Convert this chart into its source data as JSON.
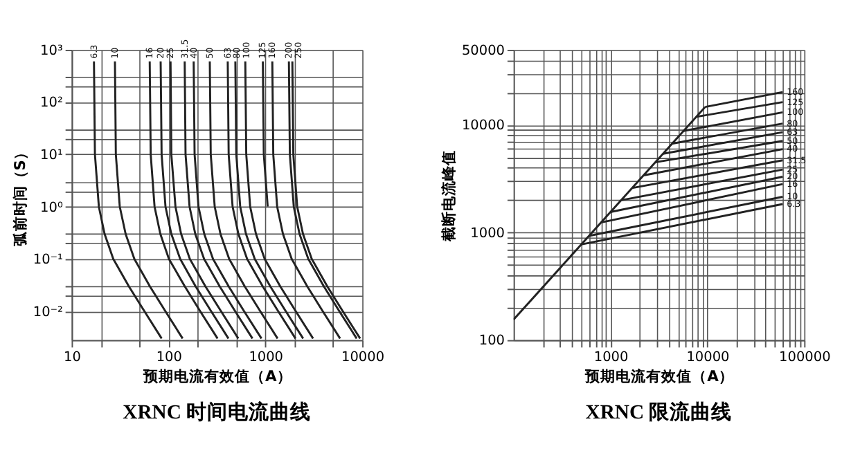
{
  "chart_data": [
    {
      "type": "line",
      "title": "XRNC 时间电流曲线",
      "xlabel": "预期电流有效值（A）",
      "ylabel": "弧前时间（S）",
      "log": "xy",
      "grid": true,
      "legend": false,
      "xlim": [
        10,
        10000
      ],
      "ylim": [
        0.0028,
        1000
      ],
      "xticks": [
        10,
        {
          "value": 20,
          "label": null
        },
        {
          "value": 50,
          "label": null
        },
        100,
        {
          "value": 200,
          "label": null
        },
        {
          "value": 500,
          "label": null
        },
        1000,
        {
          "value": 2000,
          "label": null
        },
        {
          "value": 5000,
          "label": null
        },
        10000
      ],
      "yticks": [
        {
          "value": 0.01,
          "label": "10⁻²"
        },
        {
          "value": 0.02,
          "label": null
        },
        {
          "value": 0.03,
          "label": null
        },
        {
          "value": 0.1,
          "label": "10⁻¹"
        },
        {
          "value": 0.2,
          "label": null
        },
        {
          "value": 0.3,
          "label": null
        },
        {
          "value": 1,
          "label": "10⁰"
        },
        {
          "value": 2,
          "label": null
        },
        {
          "value": 3,
          "label": null
        },
        {
          "value": 10,
          "label": "10¹"
        },
        {
          "value": 20,
          "label": null
        },
        {
          "value": 30,
          "label": null
        },
        {
          "value": 100,
          "label": "10²"
        },
        {
          "value": 200,
          "label": null
        },
        {
          "value": 300,
          "label": null
        },
        {
          "value": 1000,
          "label": "10³"
        }
      ],
      "series": [
        {
          "name": "6.3",
          "color": "#222222",
          "x": [
            17,
            17.4,
            19.1,
            21.9,
            26.9,
            38.9,
            56.3,
            85
          ],
          "values": [
            600,
            10,
            1,
            0.3,
            0.1,
            0.03,
            0.01,
            0.003
          ]
        },
        {
          "name": "10",
          "color": "#222222",
          "x": [
            28,
            28.6,
            31.4,
            36.1,
            44.4,
            64.1,
            92.7,
            140
          ],
          "values": [
            600,
            10,
            1,
            0.3,
            0.1,
            0.03,
            0.01,
            0.003
          ]
        },
        {
          "name": "16",
          "color": "#222222",
          "x": [
            64,
            65.5,
            71.8,
            82.4,
            101,
            147,
            212,
            321
          ],
          "values": [
            600,
            10,
            1,
            0.3,
            0.1,
            0.03,
            0.01,
            0.003
          ]
        },
        {
          "name": "20",
          "color": "#222222",
          "x": [
            83,
            84.9,
            93.1,
            107,
            132,
            190,
            275,
            416
          ],
          "values": [
            600,
            10,
            1,
            0.3,
            0.1,
            0.03,
            0.01,
            0.003
          ]
        },
        {
          "name": "25",
          "color": "#222222",
          "x": [
            105,
            107,
            118,
            135,
            166,
            240,
            348,
            526
          ],
          "values": [
            600,
            10,
            1,
            0.3,
            0.1,
            0.03,
            0.01,
            0.003
          ]
        },
        {
          "name": "31.5",
          "color": "#222222",
          "x": [
            147,
            150,
            165,
            189,
            233,
            337,
            487,
            736
          ],
          "values": [
            600,
            10,
            1,
            0.3,
            0.1,
            0.03,
            0.01,
            0.003
          ]
        },
        {
          "name": "40",
          "color": "#222222",
          "x": [
            182,
            186,
            204,
            234,
            288,
            417,
            602,
            912
          ],
          "values": [
            600,
            10,
            1,
            0.3,
            0.1,
            0.03,
            0.01,
            0.003
          ]
        },
        {
          "name": "50",
          "color": "#222222",
          "x": [
            267,
            273,
            300,
            344,
            423,
            611,
            884,
            1338
          ],
          "values": [
            600,
            10,
            1,
            0.3,
            0.1,
            0.03,
            0.01,
            0.003
          ]
        },
        {
          "name": "63",
          "color": "#222222",
          "x": [
            409,
            418,
            459,
            527,
            648,
            937,
            1354,
            2049
          ],
          "values": [
            600,
            10,
            1,
            0.3,
            0.1,
            0.03,
            0.01,
            0.003
          ]
        },
        {
          "name": "80",
          "color": "#222222",
          "x": [
            490,
            501,
            550,
            631,
            777,
            1122,
            1622,
            2455
          ],
          "values": [
            600,
            10,
            1,
            0.3,
            0.1,
            0.03,
            0.01,
            0.003
          ]
        },
        {
          "name": "100",
          "color": "#222222",
          "x": [
            621,
            635,
            697,
            800,
            984,
            1422,
            2056,
            3111
          ],
          "values": [
            600,
            10,
            1,
            0.3,
            0.1,
            0.03,
            0.01,
            0.003
          ]
        },
        {
          "name": "125",
          "color": "#222222",
          "x": [
            942,
            964,
            1057
          ],
          "values": [
            600,
            10,
            1
          ]
        },
        {
          "name": "160",
          "color": "#222222",
          "x": [
            1180,
            1207,
            1324,
            1520,
            1870,
            2702,
            3906,
            5912
          ],
          "values": [
            600,
            10,
            1,
            0.3,
            0.1,
            0.03,
            0.01,
            0.003
          ]
        },
        {
          "name": "200",
          "color": "#222222",
          "x": [
            1750,
            1790,
            1964,
            2254,
            2774,
            4008,
            5793,
            8768
          ],
          "values": [
            600,
            10,
            1,
            0.3,
            0.1,
            0.03,
            0.01,
            0.003
          ]
        },
        {
          "name": "250",
          "color": "#222222",
          "x": [
            1900,
            1944,
            2132,
            2447,
            3012,
            4351,
            6289,
            9519
          ],
          "values": [
            600,
            10,
            1,
            0.3,
            0.1,
            0.03,
            0.01,
            0.003
          ]
        }
      ]
    },
    {
      "type": "line",
      "title": "XRNC 限流曲线",
      "xlabel": "预期电流有效值（A）",
      "ylabel": "截断电流峰值",
      "log": "xy",
      "grid": true,
      "legend": false,
      "xlim": [
        100,
        100000
      ],
      "ylim": [
        100,
        50000
      ],
      "xticks": [
        {
          "value": 200,
          "label": null
        },
        {
          "value": 300,
          "label": null
        },
        {
          "value": 400,
          "label": null
        },
        {
          "value": 500,
          "label": null
        },
        {
          "value": 600,
          "label": null
        },
        {
          "value": 700,
          "label": null
        },
        {
          "value": 800,
          "label": null
        },
        {
          "value": 900,
          "label": null
        },
        1000,
        {
          "value": 2000,
          "label": null
        },
        {
          "value": 3000,
          "label": null
        },
        {
          "value": 4000,
          "label": null
        },
        {
          "value": 5000,
          "label": null
        },
        {
          "value": 6000,
          "label": null
        },
        {
          "value": 7000,
          "label": null
        },
        {
          "value": 8000,
          "label": null
        },
        {
          "value": 9000,
          "label": null
        },
        10000,
        {
          "value": 20000,
          "label": null
        },
        {
          "value": 30000,
          "label": null
        },
        {
          "value": 40000,
          "label": null
        },
        {
          "value": 50000,
          "label": null
        },
        {
          "value": 60000,
          "label": null
        },
        {
          "value": 70000,
          "label": null
        },
        {
          "value": 80000,
          "label": null
        },
        {
          "value": 90000,
          "label": null
        },
        100000
      ],
      "yticks": [
        100,
        {
          "value": 200,
          "label": null
        },
        {
          "value": 300,
          "label": null
        },
        {
          "value": 400,
          "label": null
        },
        {
          "value": 500,
          "label": null
        },
        {
          "value": 600,
          "label": null
        },
        {
          "value": 700,
          "label": null
        },
        {
          "value": 800,
          "label": null
        },
        {
          "value": 900,
          "label": null
        },
        1000,
        {
          "value": 2000,
          "label": null
        },
        {
          "value": 3000,
          "label": null
        },
        {
          "value": 4000,
          "label": null
        },
        {
          "value": 5000,
          "label": null
        },
        {
          "value": 6000,
          "label": null
        },
        {
          "value": 7000,
          "label": null
        },
        {
          "value": 8000,
          "label": null
        },
        {
          "value": 9000,
          "label": null
        },
        10000,
        {
          "value": 20000,
          "label": null
        },
        {
          "value": 30000,
          "label": null
        },
        {
          "value": 40000,
          "label": null
        },
        50000
      ],
      "series": [
        {
          "color": "#222222",
          "x": [
            100,
            9500
          ],
          "values": [
            155,
            14700
          ]
        },
        {
          "name": "160",
          "color": "#222222",
          "x": [
            9500,
            60000
          ],
          "values": [
            14700,
            20200
          ]
        },
        {
          "name": "125",
          "color": "#222222",
          "x": [
            7700,
            60000
          ],
          "values": [
            11900,
            16300
          ]
        },
        {
          "name": "100",
          "color": "#222222",
          "x": [
            5700,
            60000
          ],
          "values": [
            8800,
            13100
          ]
        },
        {
          "name": "80",
          "color": "#222222",
          "x": [
            4300,
            60000
          ],
          "values": [
            6700,
            10300
          ]
        },
        {
          "name": "63",
          "color": "#222222",
          "x": [
            3500,
            60000
          ],
          "values": [
            5400,
            8560
          ]
        },
        {
          "name": "50",
          "color": "#222222",
          "x": [
            2900,
            60000
          ],
          "values": [
            4500,
            7100
          ]
        },
        {
          "name": "40",
          "color": "#222222",
          "x": [
            2200,
            60000
          ],
          "values": [
            3400,
            5960
          ]
        },
        {
          "name": "31.5",
          "color": "#222222",
          "x": [
            1700,
            60000
          ],
          "values": [
            2600,
            4690
          ]
        },
        {
          "name": "25",
          "color": "#222222",
          "x": [
            1300,
            60000
          ],
          "values": [
            2000,
            3850
          ]
        },
        {
          "name": "20",
          "color": "#222222",
          "x": [
            1000,
            60000
          ],
          "values": [
            1550,
            3300
          ]
        },
        {
          "name": "16",
          "color": "#222222",
          "x": [
            800,
            60000
          ],
          "values": [
            1240,
            2820
          ]
        },
        {
          "name": "10",
          "color": "#222222",
          "x": [
            600,
            60000
          ],
          "values": [
            930,
            2150
          ]
        },
        {
          "name": "6.3",
          "color": "#222222",
          "x": [
            500,
            60000
          ],
          "values": [
            775,
            1840
          ]
        }
      ]
    }
  ]
}
